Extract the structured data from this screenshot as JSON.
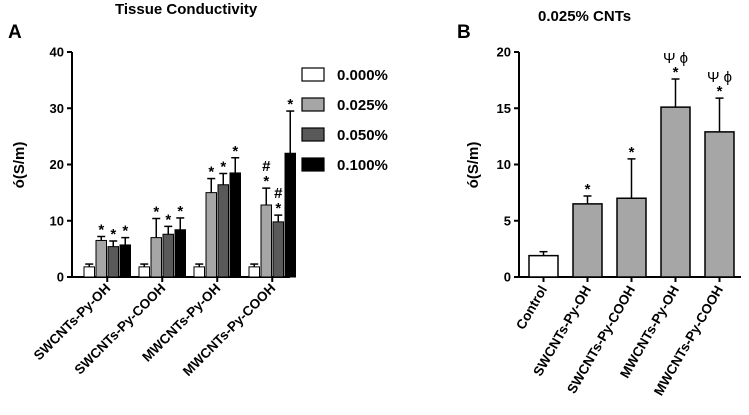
{
  "chart_data": [
    {
      "panel": "A",
      "type": "bar",
      "title": "Tissue Conductivity",
      "ylabel": "ó(S/m)",
      "xlabel": "",
      "ylim": [
        0,
        40
      ],
      "yticks": [
        "0",
        "10",
        "20",
        "30",
        "40"
      ],
      "categories": [
        "SWCNTs-Py-OH",
        "SWCNTs-Py-COOH",
        "MWCNTs-Py-OH",
        "MWCNTs-Py-COOH"
      ],
      "series": [
        {
          "name": "0.000%",
          "color": "#ffffff",
          "values": [
            1.8,
            1.8,
            1.8,
            1.8
          ],
          "errors": [
            0.5,
            0.5,
            0.5,
            0.5
          ],
          "annotations": [
            "",
            "",
            "",
            ""
          ]
        },
        {
          "name": "0.025%",
          "color": "#a6a6a6",
          "values": [
            6.5,
            7.0,
            15.0,
            12.8
          ],
          "errors": [
            0.7,
            3.4,
            2.5,
            3.0
          ],
          "annotations": [
            "*",
            "*",
            "*",
            "*\n#"
          ]
        },
        {
          "name": "0.050%",
          "color": "#595959",
          "values": [
            5.4,
            7.6,
            16.4,
            9.8
          ],
          "errors": [
            1.0,
            1.4,
            2.0,
            1.2
          ],
          "annotations": [
            "*",
            "*",
            "*",
            "*\n#"
          ]
        },
        {
          "name": "0.100%",
          "color": "#000000",
          "values": [
            5.7,
            8.4,
            18.5,
            22.0
          ],
          "errors": [
            1.3,
            2.1,
            2.7,
            7.5
          ],
          "annotations": [
            "*",
            "*",
            "*",
            "*"
          ]
        }
      ],
      "legend": "right"
    },
    {
      "panel": "B",
      "type": "bar",
      "title": "0.025% CNTs",
      "ylabel": "ó(S/m)",
      "xlabel": "",
      "ylim": [
        0,
        20
      ],
      "yticks": [
        "0",
        "5",
        "10",
        "15",
        "20"
      ],
      "categories": [
        "Control",
        "SWCNTs-Py-OH",
        "SWCNTs-Py-COOH",
        "MWCNTs-Py-OH",
        "MWCNTs-Py-COOH"
      ],
      "values": [
        1.9,
        6.5,
        7.0,
        15.1,
        12.9
      ],
      "errors": [
        0.35,
        0.7,
        3.5,
        2.5,
        3.0
      ],
      "colors": [
        "#ffffff",
        "#a6a6a6",
        "#a6a6a6",
        "#a6a6a6",
        "#a6a6a6"
      ],
      "annotations": [
        "",
        "*",
        "*",
        "*",
        "*"
      ],
      "annotations_extra": [
        "",
        "",
        "",
        "Ψ ϕ",
        "Ψ ϕ"
      ]
    }
  ]
}
